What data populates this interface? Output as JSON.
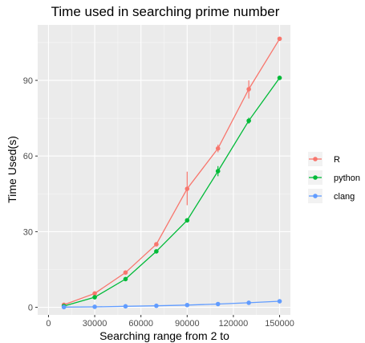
{
  "chart_data": {
    "type": "line",
    "title": "Time used in searching prime number",
    "xlabel": "Searching range from 2 to",
    "ylabel": "Time Used(s)",
    "x": [
      10000,
      30000,
      50000,
      70000,
      90000,
      110000,
      130000,
      150000
    ],
    "xlim": [
      -7000,
      157000
    ],
    "ylim": [
      -3,
      112
    ],
    "xticks": [
      0,
      30000,
      60000,
      90000,
      120000,
      150000
    ],
    "xtick_labels": [
      "0",
      "30000",
      "60000",
      "90000",
      "120000",
      "150000"
    ],
    "yticks": [
      0,
      30,
      60,
      90
    ],
    "ytick_labels": [
      "0",
      "30",
      "60",
      "90"
    ],
    "grid": true,
    "legend_position": "right",
    "series": [
      {
        "name": "R",
        "color": "#F8766D",
        "values": [
          1.0,
          5.5,
          13.8,
          25.0,
          47.0,
          63.0,
          86.5,
          106.5
        ],
        "error_low": [
          0.2,
          5.0,
          13.2,
          24.3,
          40.5,
          61.5,
          82.8,
          106.0
        ],
        "error_high": [
          1.8,
          6.0,
          14.5,
          25.8,
          53.8,
          64.5,
          90.0,
          107.0
        ]
      },
      {
        "name": "python",
        "color": "#00BA38",
        "values": [
          0.5,
          4.0,
          11.2,
          22.2,
          34.5,
          54.0,
          74.0,
          91.0
        ],
        "error_low": [
          0.2,
          3.6,
          10.8,
          21.8,
          34.0,
          52.0,
          72.8,
          90.5
        ],
        "error_high": [
          0.8,
          4.4,
          11.6,
          22.6,
          35.0,
          56.0,
          75.2,
          91.5
        ]
      },
      {
        "name": "clang",
        "color": "#619CFF",
        "values": [
          0.1,
          0.2,
          0.4,
          0.6,
          0.9,
          1.3,
          1.8,
          2.4
        ],
        "error_low": [
          0.1,
          0.2,
          0.4,
          0.6,
          0.9,
          1.3,
          1.8,
          2.4
        ],
        "error_high": [
          0.1,
          0.2,
          0.4,
          0.6,
          0.9,
          1.3,
          1.8,
          2.4
        ]
      }
    ]
  }
}
